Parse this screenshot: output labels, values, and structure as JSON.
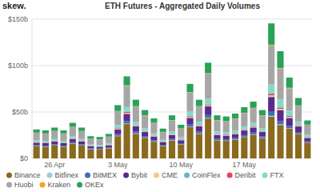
{
  "chart_data": {
    "type": "bar",
    "title": "ETH Futures - Aggregated Daily Volumes",
    "annotations": [
      "skew."
    ],
    "stacked": true,
    "grid": true,
    "legend": "bottom",
    "categories": [
      null,
      null,
      "26 Apr",
      null,
      null,
      null,
      null,
      null,
      null,
      "3 May",
      null,
      null,
      null,
      null,
      null,
      null,
      "10 May",
      null,
      null,
      null,
      null,
      null,
      null,
      "17 May",
      null,
      null,
      null,
      null,
      null,
      null,
      null
    ],
    "ylim": [
      0,
      150
    ],
    "yticks": [
      {
        "value": 0,
        "label": "$0"
      },
      {
        "value": 50,
        "label": "$50b"
      },
      {
        "value": 100,
        "label": "$100b"
      },
      {
        "value": 150,
        "label": "$150b"
      }
    ],
    "series": [
      {
        "name": "Binance",
        "color": "#8a6a1e",
        "values": [
          13,
          12.6,
          13.9,
          12.6,
          16,
          13.9,
          10,
          9.7,
          10.9,
          24,
          37,
          26.5,
          21.8,
          18,
          13.4,
          19.3,
          15.1,
          33.6,
          26.5,
          43,
          19.3,
          18.9,
          20.2,
          23.1,
          25.6,
          21.8,
          45,
          36,
          32,
          26,
          17
        ]
      },
      {
        "name": "Bitfinex",
        "color": "#9ecae1",
        "values": [
          0.2,
          0.2,
          0.2,
          0.2,
          0.3,
          0.2,
          0.2,
          0.1,
          0.2,
          0.4,
          0.5,
          0.4,
          0.3,
          0.3,
          0.2,
          0.3,
          0.2,
          0.5,
          0.4,
          0.6,
          0.3,
          0.3,
          0.3,
          0.3,
          0.4,
          0.3,
          0.9,
          0.7,
          0.5,
          0.4,
          0.2
        ]
      },
      {
        "name": "BitMEX",
        "color": "#3d6fb6",
        "values": [
          1,
          0.9,
          1,
          0.9,
          1.1,
          1,
          0.7,
          0.7,
          0.8,
          1.7,
          2.6,
          1.9,
          1.6,
          1.3,
          1,
          1.4,
          1.1,
          2.4,
          1.9,
          3.1,
          1.4,
          1.4,
          1.4,
          1.7,
          1.8,
          1.6,
          4.3,
          3.4,
          2.6,
          2,
          1.2
        ]
      },
      {
        "name": "Bybit",
        "color": "#5b2a8e",
        "values": [
          2.8,
          2.7,
          3,
          2.7,
          3.4,
          3,
          2.2,
          2.1,
          2.3,
          5.1,
          7.9,
          5.7,
          4.7,
          3.9,
          2.9,
          4.1,
          3.2,
          7.2,
          5.7,
          9.3,
          4.1,
          4,
          4.3,
          5,
          5.5,
          4.7,
          16,
          12,
          8.5,
          6,
          3.7
        ]
      },
      {
        "name": "CME",
        "color": "#f3c98f",
        "values": [
          0.3,
          0.3,
          0.3,
          0.3,
          0.4,
          0.3,
          0.2,
          0.2,
          0.3,
          0.6,
          0.9,
          0.6,
          0.5,
          0.4,
          0.3,
          0.5,
          0.4,
          0.8,
          0.6,
          1,
          0.5,
          0.4,
          0.5,
          0.5,
          0.6,
          0.5,
          1.5,
          1.2,
          0.9,
          0.6,
          0.4
        ]
      },
      {
        "name": "CoinFlex",
        "color": "#6bb3d6",
        "values": [
          0.1,
          0.1,
          0.1,
          0.1,
          0.1,
          0.1,
          0.1,
          0.1,
          0.1,
          0.2,
          0.2,
          0.1,
          0.1,
          0.1,
          0.1,
          0.1,
          0.1,
          0.2,
          0.1,
          0.2,
          0.1,
          0.1,
          0.1,
          0.1,
          0.1,
          0.1,
          0.3,
          0.2,
          0.2,
          0.1,
          0.1
        ]
      },
      {
        "name": "Deribit",
        "color": "#e2455b",
        "values": [
          0.3,
          0.3,
          0.3,
          0.3,
          0.4,
          0.3,
          0.2,
          0.2,
          0.3,
          0.6,
          0.9,
          0.6,
          0.5,
          0.4,
          0.3,
          0.5,
          0.4,
          0.8,
          0.6,
          1,
          0.5,
          0.5,
          0.5,
          0.6,
          0.6,
          0.5,
          1.7,
          1.4,
          0.9,
          0.7,
          0.4
        ]
      },
      {
        "name": "FTX",
        "color": "#86d9c8",
        "values": [
          1.9,
          1.8,
          2,
          1.8,
          2.3,
          2,
          1.4,
          1.4,
          1.6,
          3.4,
          5.3,
          3.8,
          3.1,
          2.6,
          1.9,
          2.8,
          2.2,
          4.8,
          3.8,
          6.2,
          2.8,
          2.7,
          2.9,
          3.3,
          3.7,
          3.1,
          10,
          9,
          6,
          4,
          2.5
        ]
      },
      {
        "name": "Huobi",
        "color": "#a6a6a6",
        "values": [
          8,
          7.8,
          8.6,
          7.8,
          9.9,
          8.6,
          6.2,
          6,
          6.8,
          14.8,
          22.9,
          16.4,
          13.5,
          11.2,
          8.3,
          12,
          9.4,
          20.8,
          16.4,
          26.8,
          12,
          11.7,
          12.5,
          14.3,
          15.9,
          13.5,
          42,
          33,
          24,
          17,
          10.7
        ]
      },
      {
        "name": "Kraken",
        "color": "#f5a623",
        "values": [
          0.2,
          0.2,
          0.2,
          0.2,
          0.2,
          0.2,
          0.1,
          0.1,
          0.2,
          0.3,
          0.5,
          0.3,
          0.3,
          0.2,
          0.2,
          0.3,
          0.2,
          0.4,
          0.3,
          0.6,
          0.3,
          0.2,
          0.3,
          0.3,
          0.3,
          0.3,
          0.8,
          0.6,
          0.5,
          0.3,
          0.2
        ]
      },
      {
        "name": "OKEx",
        "color": "#28a257",
        "values": [
          3.4,
          3.3,
          3.6,
          3.3,
          4.2,
          3.6,
          2.6,
          2.5,
          2.9,
          6.3,
          9.7,
          6.9,
          5.7,
          4.7,
          3.5,
          5.1,
          4,
          8.8,
          6.9,
          11.3,
          5.1,
          5,
          5.3,
          6,
          6.7,
          5.7,
          23,
          18,
          11,
          8,
          4.5
        ]
      }
    ]
  }
}
